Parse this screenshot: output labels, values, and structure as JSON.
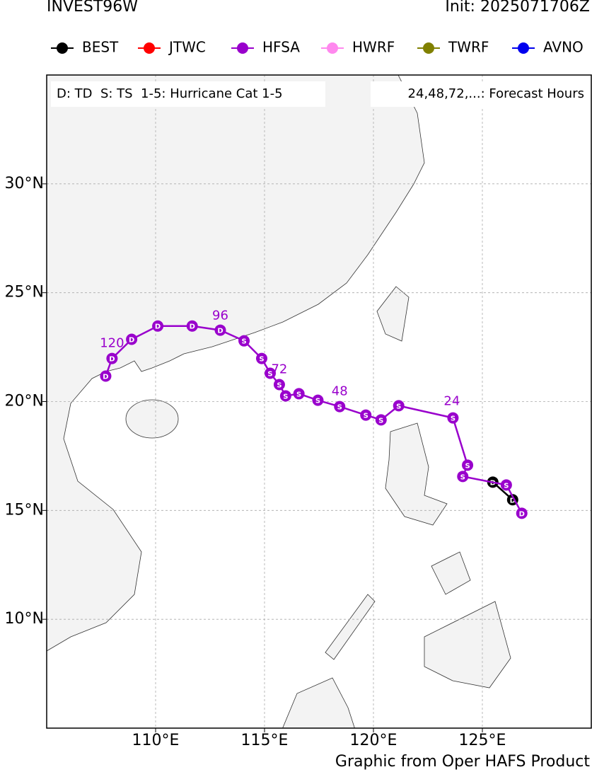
{
  "chart_data": {
    "type": "track",
    "title": "INVEST96W",
    "subtitle": "Init: 2025071706Z",
    "info_left": "D: TD  S: TS  1-5: Hurricane Cat 1-5",
    "info_right": "24,48,72,...: Forecast Hours",
    "footer": "Graphic from Oper HAFS Product",
    "xlim": [
      105,
      130
    ],
    "ylim": [
      5,
      35
    ],
    "xticks": [
      {
        "value": 110,
        "label": "110°E"
      },
      {
        "value": 115,
        "label": "115°E"
      },
      {
        "value": 120,
        "label": "120°E"
      },
      {
        "value": 125,
        "label": "125°E"
      }
    ],
    "yticks": [
      {
        "value": 10,
        "label": "10°N"
      },
      {
        "value": 15,
        "label": "15°N"
      },
      {
        "value": 20,
        "label": "20°N"
      },
      {
        "value": 25,
        "label": "25°N"
      },
      {
        "value": 30,
        "label": "30°N"
      }
    ],
    "grid": true,
    "series": [
      {
        "name": "BEST",
        "color": "#000000",
        "x": [
          125.48,
          126.39
        ],
        "values": [
          16.3,
          15.49
        ],
        "markers": [
          "D",
          "D"
        ]
      },
      {
        "name": "JTWC",
        "color": "#ff0000",
        "x": [],
        "values": [],
        "markers": []
      },
      {
        "name": "HFSA",
        "color": "#9900cc",
        "x": [
          126.81,
          126.1,
          124.1,
          124.32,
          123.65,
          121.16,
          120.35,
          119.65,
          118.45,
          117.45,
          116.58,
          115.97,
          115.68,
          115.26,
          114.87,
          114.06,
          112.97,
          111.68,
          110.1,
          108.9,
          108.0,
          107.71
        ],
        "values": [
          14.87,
          16.17,
          16.56,
          17.08,
          19.25,
          19.81,
          19.16,
          19.38,
          19.77,
          20.06,
          20.36,
          20.26,
          20.78,
          21.3,
          21.98,
          22.79,
          23.28,
          23.47,
          23.47,
          22.86,
          21.98,
          21.17
        ],
        "markers": [
          "D",
          "S",
          "S",
          "S",
          "S",
          "S",
          "S",
          "S",
          "S",
          "S",
          "S",
          "S",
          "S",
          "S",
          "S",
          "S",
          "D",
          "D",
          "D",
          "D",
          "D",
          "D"
        ]
      },
      {
        "name": "HWRF",
        "color": "#ff88ee",
        "x": [],
        "values": [],
        "markers": []
      },
      {
        "name": "TWRF",
        "color": "#808000",
        "x": [],
        "values": [],
        "markers": []
      },
      {
        "name": "AVNO",
        "color": "#0000ee",
        "x": [],
        "values": [],
        "markers": []
      }
    ],
    "annotations": [
      {
        "text": "24",
        "x": 123.6,
        "y": 20.0
      },
      {
        "text": "48",
        "x": 118.45,
        "y": 20.45
      },
      {
        "text": "72",
        "x": 115.68,
        "y": 21.46
      },
      {
        "text": "96",
        "x": 112.97,
        "y": 23.93
      },
      {
        "text": "120",
        "x": 108.0,
        "y": 22.66
      }
    ]
  }
}
